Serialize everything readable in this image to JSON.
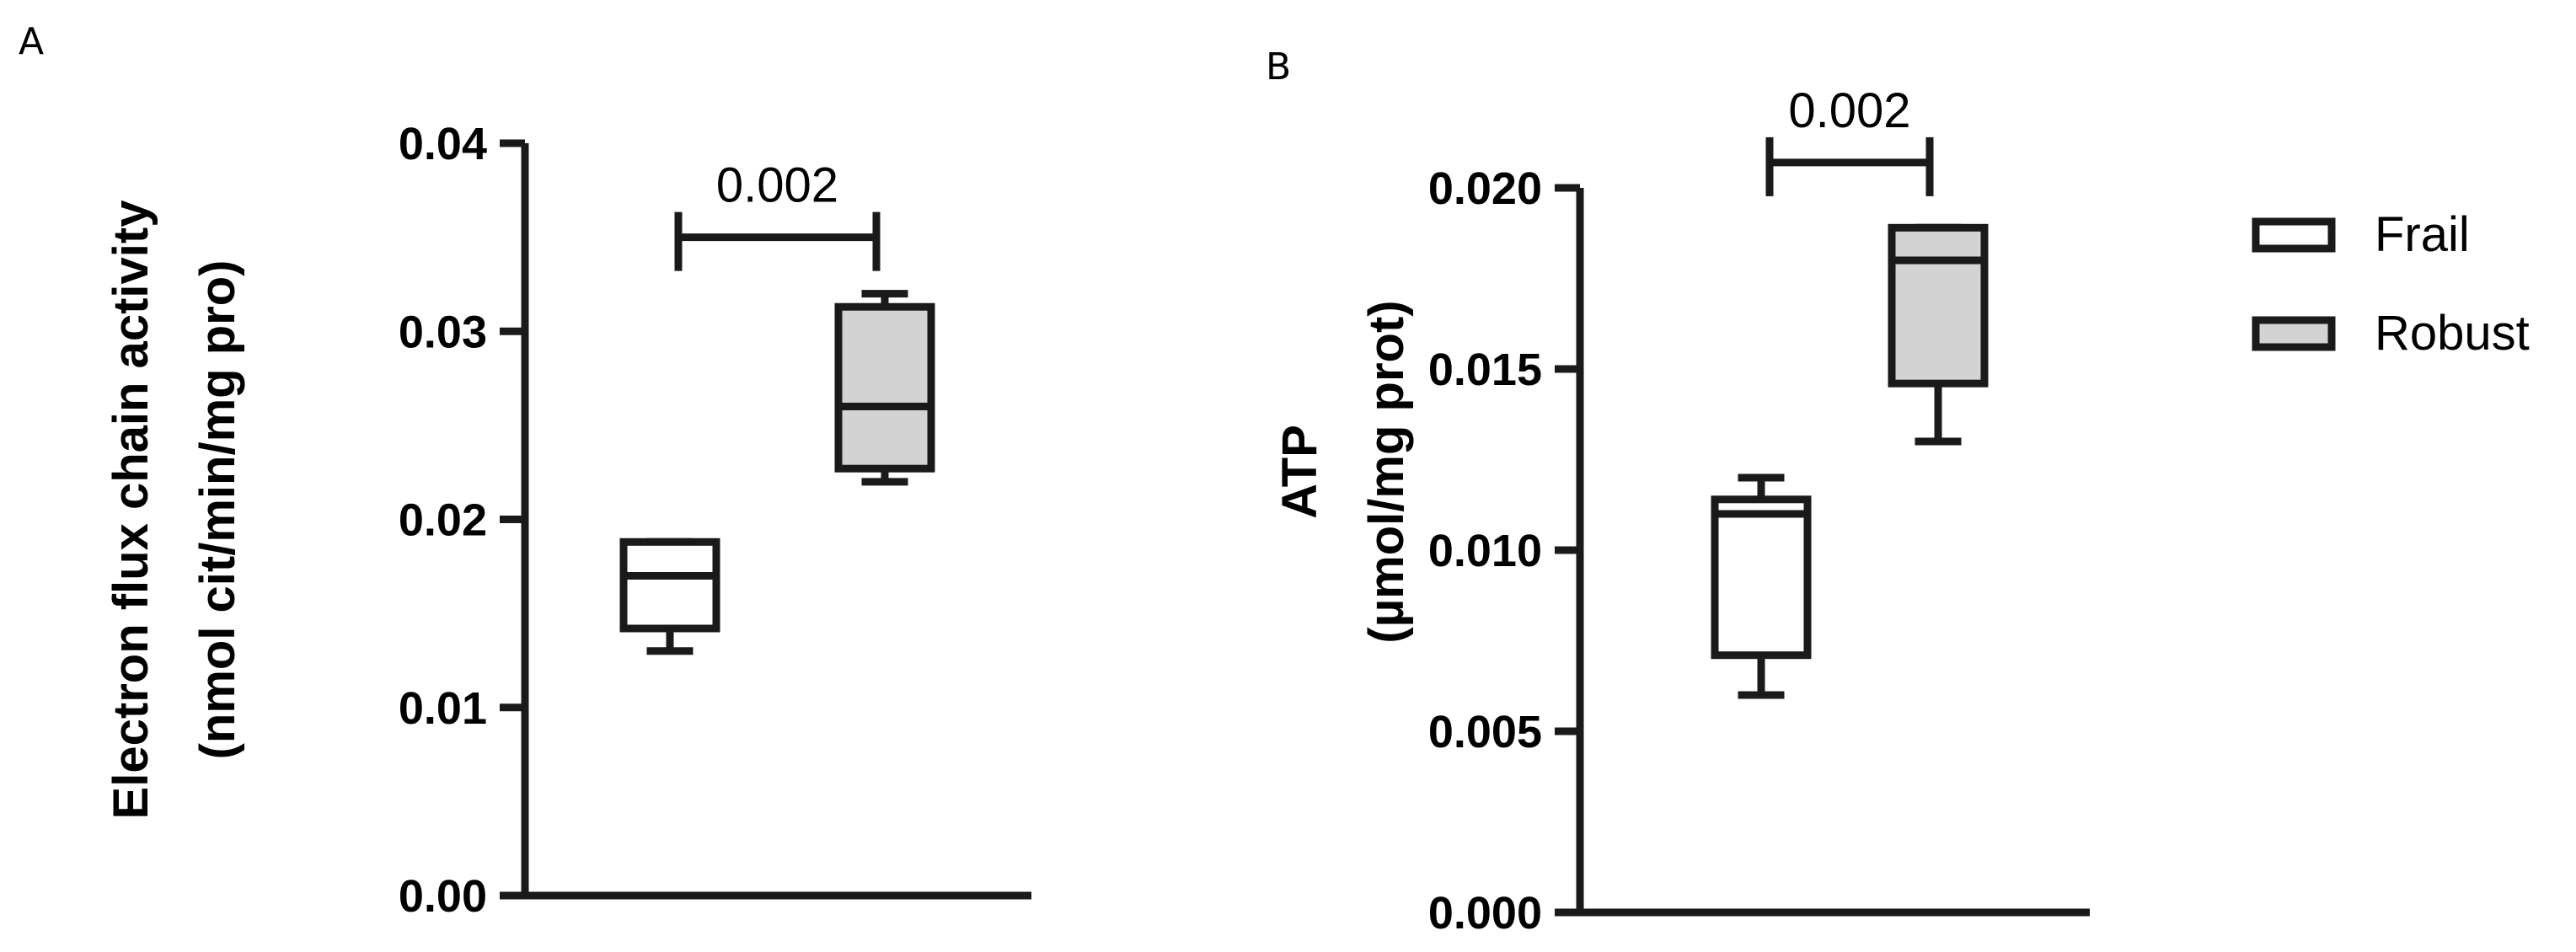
{
  "chart_data": [
    {
      "panel": "A",
      "type": "box",
      "ylabel_line1": "Electron flux chain activity",
      "ylabel_line2": "(nmol cit/min/mg pro)",
      "ylim": [
        0,
        0.04
      ],
      "yticks": [
        "0.00",
        "0.01",
        "0.02",
        "0.03",
        "0.04"
      ],
      "tick_values": [
        0,
        0.01,
        0.02,
        0.03,
        0.04
      ],
      "series": [
        {
          "name": "Frail",
          "min": 0.013,
          "q1": 0.0142,
          "median": 0.017,
          "q3": 0.0188,
          "max": 0.0188,
          "fill": "#ffffff"
        },
        {
          "name": "Robust",
          "min": 0.022,
          "q1": 0.0227,
          "median": 0.026,
          "q3": 0.0313,
          "max": 0.032,
          "fill": "#d3d3d3"
        }
      ],
      "significance": {
        "label": "0.002",
        "y": 0.035
      }
    },
    {
      "panel": "B",
      "type": "box",
      "ylabel_line1": "ATP",
      "ylabel_line2": "(µmol/mg prot)",
      "ylim": [
        0,
        0.02
      ],
      "yticks": [
        "0.000",
        "0.005",
        "0.010",
        "0.015",
        "0.020"
      ],
      "tick_values": [
        0,
        0.005,
        0.01,
        0.015,
        0.02
      ],
      "series": [
        {
          "name": "Frail",
          "min": 0.006,
          "q1": 0.0071,
          "median": 0.011,
          "q3": 0.0114,
          "max": 0.012,
          "fill": "#ffffff"
        },
        {
          "name": "Robust",
          "min": 0.013,
          "q1": 0.0146,
          "median": 0.018,
          "q3": 0.0189,
          "max": 0.0189,
          "fill": "#d3d3d3"
        }
      ],
      "significance": {
        "label": "0.002",
        "y": 0.0207
      }
    }
  ],
  "legend": [
    {
      "label": "Frail",
      "fill": "#ffffff"
    },
    {
      "label": "Robust",
      "fill": "#d3d3d3"
    }
  ],
  "colors": {
    "frail": "#ffffff",
    "robust": "#d3d3d3",
    "stroke": "#1a1a1a"
  }
}
